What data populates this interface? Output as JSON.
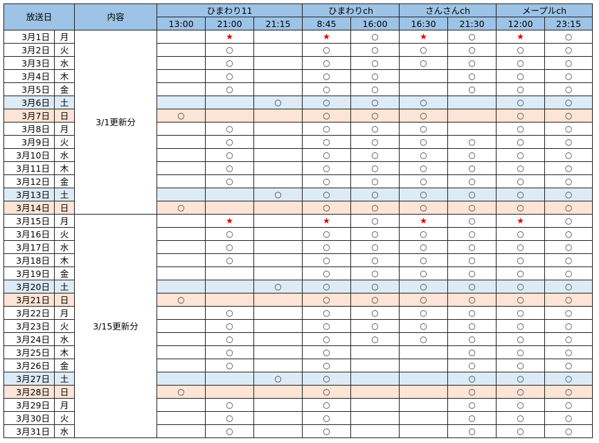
{
  "header": {
    "date_label": "放送日",
    "content_label": "内容",
    "channels": [
      {
        "name": "ひまわり11",
        "times": [
          "13:00",
          "21:00",
          "21:15"
        ]
      },
      {
        "name": "ひまわりch",
        "times": [
          "8:45",
          "16:00"
        ]
      },
      {
        "name": "さんさんch",
        "times": [
          "16:30",
          "21:30"
        ]
      },
      {
        "name": "メープルch",
        "times": [
          "12:00",
          "23:15"
        ]
      }
    ]
  },
  "colors": {
    "header": "#9dc3e6",
    "saturday": "#ddebf7",
    "sunday": "#fce4d6",
    "star": "#e00000"
  },
  "groups": [
    {
      "label": "3/1更新分",
      "rows": [
        {
          "date": "3月1日",
          "day": "月",
          "marks": [
            "",
            "★",
            "",
            "★",
            "○",
            "★",
            "○",
            "★",
            "○"
          ]
        },
        {
          "date": "3月2日",
          "day": "火",
          "marks": [
            "",
            "○",
            "",
            "○",
            "○",
            "○",
            "○",
            "○",
            "○"
          ]
        },
        {
          "date": "3月3日",
          "day": "水",
          "marks": [
            "",
            "○",
            "",
            "○",
            "○",
            "○",
            "○",
            "○",
            "○"
          ]
        },
        {
          "date": "3月4日",
          "day": "木",
          "marks": [
            "",
            "○",
            "",
            "○",
            "○",
            "",
            "○",
            "○",
            "○"
          ]
        },
        {
          "date": "3月5日",
          "day": "金",
          "marks": [
            "",
            "○",
            "",
            "○",
            "○",
            "",
            "○",
            "○",
            "○"
          ]
        },
        {
          "date": "3月6日",
          "day": "土",
          "marks": [
            "",
            "",
            "○",
            "○",
            "○",
            "○",
            "",
            "○",
            "○"
          ]
        },
        {
          "date": "3月7日",
          "day": "日",
          "marks": [
            "○",
            "",
            "",
            "○",
            "○",
            "○",
            "",
            "○",
            "○"
          ]
        },
        {
          "date": "3月8日",
          "day": "月",
          "marks": [
            "",
            "○",
            "",
            "○",
            "○",
            "○",
            "",
            "○",
            "○"
          ]
        },
        {
          "date": "3月9日",
          "day": "火",
          "marks": [
            "",
            "○",
            "",
            "○",
            "○",
            "○",
            "○",
            "○",
            "○"
          ]
        },
        {
          "date": "3月10日",
          "day": "水",
          "marks": [
            "",
            "○",
            "",
            "○",
            "○",
            "○",
            "○",
            "○",
            "○"
          ]
        },
        {
          "date": "3月11日",
          "day": "木",
          "marks": [
            "",
            "○",
            "",
            "○",
            "○",
            "○",
            "○",
            "○",
            "○"
          ]
        },
        {
          "date": "3月12日",
          "day": "金",
          "marks": [
            "",
            "○",
            "",
            "○",
            "○",
            "○",
            "○",
            "○",
            "○"
          ]
        },
        {
          "date": "3月13日",
          "day": "土",
          "marks": [
            "",
            "",
            "○",
            "○",
            "○",
            "○",
            "○",
            "○",
            "○"
          ]
        },
        {
          "date": "3月14日",
          "day": "日",
          "marks": [
            "○",
            "",
            "",
            "○",
            "○",
            "○",
            "○",
            "○",
            "○"
          ]
        }
      ]
    },
    {
      "label": "3/15更新分",
      "rows": [
        {
          "date": "3月15日",
          "day": "月",
          "marks": [
            "",
            "★",
            "",
            "★",
            "○",
            "★",
            "○",
            "★",
            "○"
          ]
        },
        {
          "date": "3月16日",
          "day": "火",
          "marks": [
            "",
            "○",
            "",
            "○",
            "○",
            "○",
            "○",
            "○",
            "○"
          ]
        },
        {
          "date": "3月17日",
          "day": "水",
          "marks": [
            "",
            "○",
            "",
            "○",
            "○",
            "○",
            "○",
            "○",
            "○"
          ]
        },
        {
          "date": "3月18日",
          "day": "木",
          "marks": [
            "",
            "○",
            "",
            "○",
            "○",
            "○",
            "○",
            "○",
            "○"
          ]
        },
        {
          "date": "3月19日",
          "day": "金",
          "marks": [
            "",
            "",
            "",
            "○",
            "○",
            "○",
            "○",
            "○",
            "○"
          ]
        },
        {
          "date": "3月20日",
          "day": "土",
          "marks": [
            "",
            "",
            "○",
            "○",
            "○",
            "○",
            "○",
            "○",
            "○"
          ]
        },
        {
          "date": "3月21日",
          "day": "日",
          "marks": [
            "○",
            "",
            "",
            "○",
            "○",
            "○",
            "○",
            "○",
            "○"
          ]
        },
        {
          "date": "3月22日",
          "day": "月",
          "marks": [
            "",
            "○",
            "",
            "○",
            "○",
            "○",
            "○",
            "○",
            "○"
          ]
        },
        {
          "date": "3月23日",
          "day": "火",
          "marks": [
            "",
            "○",
            "",
            "○",
            "○",
            "○",
            "○",
            "○",
            "○"
          ]
        },
        {
          "date": "3月24日",
          "day": "水",
          "marks": [
            "",
            "○",
            "",
            "○",
            "○",
            "○",
            "○",
            "○",
            "○"
          ]
        },
        {
          "date": "3月25日",
          "day": "木",
          "marks": [
            "",
            "○",
            "",
            "○",
            "",
            "",
            "○",
            "○",
            "○"
          ]
        },
        {
          "date": "3月26日",
          "day": "金",
          "marks": [
            "",
            "○",
            "",
            "○",
            "",
            "",
            "○",
            "○",
            "○"
          ]
        },
        {
          "date": "3月27日",
          "day": "土",
          "marks": [
            "",
            "",
            "○",
            "○",
            "",
            "",
            "○",
            "○",
            "○"
          ]
        },
        {
          "date": "3月28日",
          "day": "日",
          "marks": [
            "○",
            "",
            "",
            "○",
            "",
            "",
            "○",
            "○",
            "○"
          ]
        },
        {
          "date": "3月29日",
          "day": "月",
          "marks": [
            "",
            "○",
            "",
            "○",
            "",
            "",
            "○",
            "○",
            "○"
          ]
        },
        {
          "date": "3月30日",
          "day": "火",
          "marks": [
            "",
            "○",
            "",
            "○",
            "",
            "",
            "○",
            "○",
            "○"
          ]
        },
        {
          "date": "3月31日",
          "day": "水",
          "marks": [
            "",
            "○",
            "",
            "○",
            "",
            "",
            "○",
            "○",
            "○"
          ]
        }
      ]
    }
  ]
}
